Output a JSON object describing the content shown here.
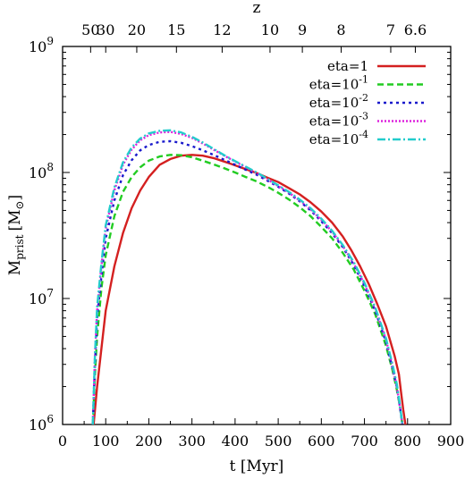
{
  "chart_data": {
    "type": "line",
    "title": "",
    "xlabel": "t [Myr]",
    "ylabel": "M",
    "ylabel_sub": "prist",
    "ylabel_unit": "[M",
    "ylabel_unit_sub": "⊙",
    "ylabel_unit_close": "]",
    "top_axis_label": "z",
    "x_scale": "linear",
    "y_scale": "log",
    "xlim": [
      0,
      900
    ],
    "ylim": [
      1000000,
      1000000000
    ],
    "x_ticks": [
      0,
      100,
      200,
      300,
      400,
      500,
      600,
      700,
      800,
      900
    ],
    "x_tick_labels": [
      "0",
      "100",
      "200",
      "300",
      "400",
      "500",
      "600",
      "700",
      "800",
      "900"
    ],
    "y_ticks": [
      1000000,
      10000000,
      100000000,
      1000000000
    ],
    "y_tick_base": "10",
    "y_tick_exponents": [
      "6",
      "7",
      "8",
      "9"
    ],
    "top_ticks": [
      {
        "t": 65,
        "label": "50"
      },
      {
        "t": 100,
        "label": "30"
      },
      {
        "t": 172,
        "label": "20"
      },
      {
        "t": 264,
        "label": "15"
      },
      {
        "t": 370,
        "label": "12"
      },
      {
        "t": 481,
        "label": "10"
      },
      {
        "t": 556,
        "label": "9"
      },
      {
        "t": 646,
        "label": "8"
      },
      {
        "t": 761,
        "label": "7"
      },
      {
        "t": 818,
        "label": "6.6"
      }
    ],
    "grid": false,
    "legend_position": "top-right",
    "series": [
      {
        "name": "eta=1",
        "name_base": "eta=1",
        "name_exp": "",
        "color": "#d42020",
        "dash": "",
        "x": [
          72,
          80,
          90,
          100,
          120,
          140,
          160,
          180,
          200,
          225,
          250,
          275,
          300,
          325,
          350,
          375,
          400,
          425,
          450,
          475,
          500,
          525,
          550,
          575,
          600,
          625,
          650,
          670,
          690,
          710,
          730,
          750,
          770,
          780,
          785,
          790,
          795
        ],
        "y": [
          1000000,
          2000000,
          4000000,
          8000000,
          18000000,
          33000000,
          52000000,
          72000000,
          92000000,
          115000000,
          128000000,
          136000000,
          138000000,
          136000000,
          130000000,
          122000000,
          114000000,
          106000000,
          99000000,
          91000000,
          84000000,
          75000000,
          67000000,
          58000000,
          49000000,
          40000000,
          31000000,
          24000000,
          18000000,
          13000000,
          9000000,
          6000000,
          3500000,
          2500000,
          1800000,
          1300000,
          1000000
        ]
      },
      {
        "name": "eta=10^-1",
        "name_base": "eta=10",
        "name_exp": "-1",
        "color": "#22cc22",
        "dash": "7,4",
        "x": [
          70,
          75,
          80,
          90,
          100,
          120,
          140,
          160,
          180,
          200,
          225,
          250,
          275,
          300,
          325,
          350,
          375,
          400,
          425,
          450,
          475,
          500,
          525,
          550,
          575,
          600,
          625,
          650,
          675,
          700,
          725,
          750,
          765,
          775,
          782,
          788
        ],
        "y": [
          1000000,
          2500000,
          5000000,
          12000000,
          22000000,
          45000000,
          70000000,
          92000000,
          110000000,
          124000000,
          134000000,
          138000000,
          137000000,
          132000000,
          124000000,
          116000000,
          108000000,
          100000000,
          92000000,
          85000000,
          77000000,
          69000000,
          61000000,
          53000000,
          45000000,
          37000000,
          30000000,
          23000000,
          17000000,
          11500000,
          7500000,
          4200000,
          2700000,
          1900000,
          1400000,
          1000000
        ]
      },
      {
        "name": "eta=10^-2",
        "name_base": "eta=10",
        "name_exp": "-2",
        "color": "#1a1acc",
        "dash": "3,4",
        "x": [
          70,
          75,
          80,
          90,
          100,
          120,
          140,
          160,
          180,
          200,
          225,
          250,
          275,
          300,
          325,
          350,
          375,
          400,
          425,
          450,
          475,
          500,
          525,
          550,
          575,
          600,
          625,
          650,
          675,
          700,
          725,
          750,
          765,
          775,
          782,
          788
        ],
        "y": [
          1000000,
          3000000,
          7000000,
          15000000,
          30000000,
          60000000,
          95000000,
          125000000,
          150000000,
          165000000,
          175000000,
          177000000,
          172000000,
          162000000,
          150000000,
          138000000,
          126000000,
          115000000,
          105000000,
          96000000,
          86000000,
          77000000,
          68000000,
          59000000,
          50000000,
          41000000,
          33000000,
          25500000,
          18500000,
          12500000,
          8000000,
          4500000,
          2800000,
          2000000,
          1400000,
          1000000
        ]
      },
      {
        "name": "eta=10^-3",
        "name_base": "eta=10",
        "name_exp": "-3",
        "color": "#dd22dd",
        "dash": "2,2",
        "x": [
          70,
          75,
          80,
          90,
          100,
          120,
          140,
          160,
          180,
          200,
          225,
          250,
          275,
          300,
          325,
          350,
          375,
          400,
          425,
          450,
          475,
          500,
          525,
          550,
          575,
          600,
          625,
          650,
          675,
          700,
          725,
          750,
          765,
          775,
          782,
          788
        ],
        "y": [
          1000000,
          3500000,
          8000000,
          18000000,
          36000000,
          72000000,
          115000000,
          152000000,
          180000000,
          198000000,
          208000000,
          210000000,
          202000000,
          188000000,
          170000000,
          152000000,
          136000000,
          122000000,
          110000000,
          99000000,
          88000000,
          78000000,
          69000000,
          60000000,
          51000000,
          42000000,
          34000000,
          26000000,
          19000000,
          13000000,
          8300000,
          4700000,
          2900000,
          2000000,
          1400000,
          1000000
        ]
      },
      {
        "name": "eta=10^-4",
        "name_base": "eta=10",
        "name_exp": "-4",
        "color": "#22cccc",
        "dash": "9,3,2,3",
        "x": [
          70,
          75,
          80,
          90,
          100,
          120,
          140,
          160,
          180,
          200,
          225,
          250,
          275,
          300,
          325,
          350,
          375,
          400,
          425,
          450,
          475,
          500,
          525,
          550,
          575,
          600,
          625,
          650,
          675,
          700,
          725,
          750,
          765,
          775,
          782,
          788
        ],
        "y": [
          1000000,
          3600000,
          8500000,
          19000000,
          38000000,
          76000000,
          120000000,
          158000000,
          186000000,
          204000000,
          214000000,
          216000000,
          208000000,
          192000000,
          173000000,
          154000000,
          137000000,
          123000000,
          111000000,
          100000000,
          89000000,
          79000000,
          70000000,
          61000000,
          52000000,
          43000000,
          34500000,
          26500000,
          19500000,
          13300000,
          8500000,
          4800000,
          3000000,
          2100000,
          1450000,
          1000000
        ]
      }
    ]
  }
}
